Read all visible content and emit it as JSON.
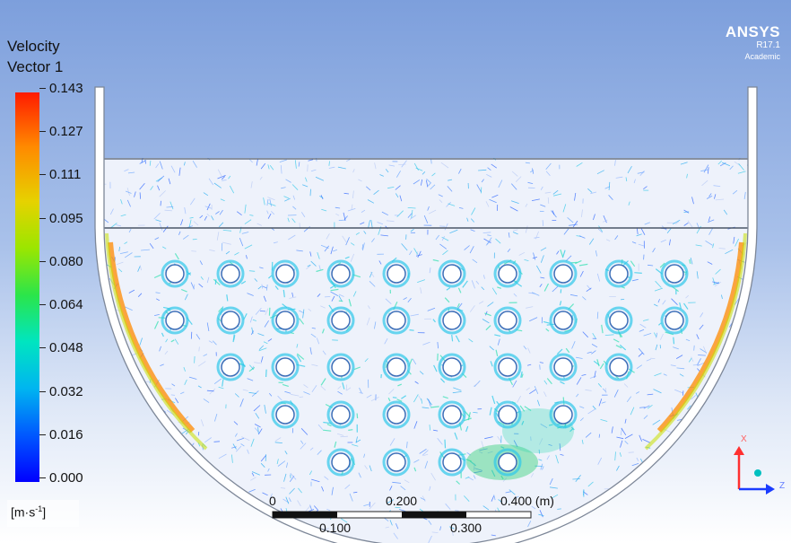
{
  "legend": {
    "title_line1": "Velocity",
    "title_line2": "Vector 1",
    "ticks": [
      "0.143",
      "0.127",
      "0.111",
      "0.095",
      "0.080",
      "0.064",
      "0.048",
      "0.032",
      "0.016",
      "0.000"
    ],
    "unit": "[m·s",
    "unit_exp": "-1",
    "unit_close": "]"
  },
  "brand": {
    "name": "ANSYS",
    "version": "R17.1",
    "edition": "Academic"
  },
  "scale_bar": {
    "top_labels": [
      "0",
      "0.200",
      "0.400 (m)"
    ],
    "bottom_labels": [
      "0.100",
      "0.300"
    ]
  },
  "axes": {
    "x_label": "X",
    "z_label": "Z"
  },
  "colors": {
    "tank_wall": "#8f9bb0",
    "axis_x": "#ff3030",
    "axis_z": "#1a3cff",
    "axis_y": "#00c0c0"
  }
}
